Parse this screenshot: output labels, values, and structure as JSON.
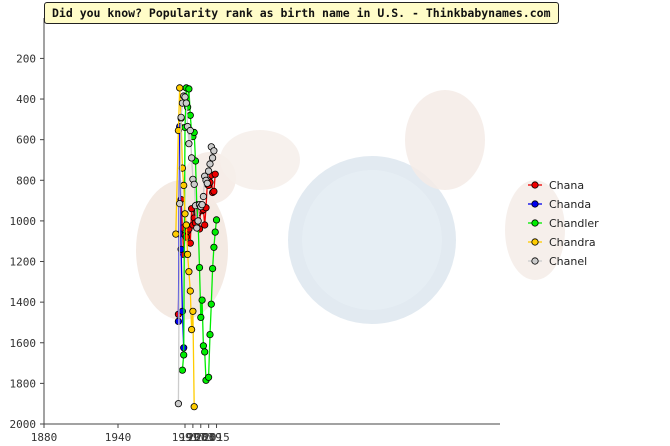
{
  "title": "Did you know? Popularity rank as birth name in U.S. - Thinkbabynames.com",
  "chart_data": {
    "type": "line",
    "x_ticks": [
      1880,
      1940,
      1991,
      1997,
      2003,
      2009,
      2015
    ],
    "y_ticks": [
      200,
      400,
      600,
      800,
      1000,
      1200,
      1400,
      1600,
      1800,
      2000
    ],
    "ylim": [
      2000,
      1
    ],
    "y_inverted": true,
    "grid": false,
    "legend_placement": "right",
    "series": [
      {
        "name": "Chana",
        "color": "#ee0000",
        "points": [
          [
            1986,
            1460
          ],
          [
            1987,
            1065
          ],
          [
            1988,
            895
          ],
          [
            1989,
            1035
          ],
          [
            1990,
            1165
          ],
          [
            1991,
            1070
          ],
          [
            1992,
            1080
          ],
          [
            1993,
            1050
          ],
          [
            1994,
            1040
          ],
          [
            1995,
            1110
          ],
          [
            1996,
            940
          ],
          [
            1997,
            1020
          ],
          [
            1998,
            985
          ],
          [
            1999,
            1010
          ],
          [
            2000,
            960
          ],
          [
            2001,
            960
          ],
          [
            2002,
            1040
          ],
          [
            2003,
            920
          ],
          [
            2004,
            950
          ],
          [
            2005,
            945
          ],
          [
            2006,
            1020
          ],
          [
            2007,
            935
          ],
          [
            2008,
            820
          ],
          [
            2009,
            825
          ],
          [
            2010,
            810
          ],
          [
            2011,
            775
          ],
          [
            2012,
            860
          ],
          [
            2013,
            855
          ],
          [
            2014,
            770
          ]
        ]
      },
      {
        "name": "Chanda",
        "color": "#0000ee",
        "points": [
          [
            1986,
            1495
          ],
          [
            1987,
            535
          ],
          [
            1988,
            1140
          ],
          [
            1989,
            1445
          ],
          [
            1990,
            1625
          ]
        ]
      },
      {
        "name": "Chandler",
        "color": "#00ee00",
        "points": [
          [
            1989,
            1735
          ],
          [
            1990,
            1660
          ],
          [
            1991,
            540
          ],
          [
            1992,
            345
          ],
          [
            1993,
            440
          ],
          [
            1994,
            350
          ],
          [
            1995,
            480
          ],
          [
            1996,
            565
          ],
          [
            1997,
            585
          ],
          [
            1998,
            565
          ],
          [
            1999,
            705
          ],
          [
            2000,
            920
          ],
          [
            2001,
            1000
          ],
          [
            2002,
            1230
          ],
          [
            2003,
            1475
          ],
          [
            2004,
            1390
          ],
          [
            2005,
            1615
          ],
          [
            2006,
            1645
          ],
          [
            2007,
            1785
          ],
          [
            2009,
            1770
          ],
          [
            2010,
            1560
          ],
          [
            2011,
            1410
          ],
          [
            2012,
            1235
          ],
          [
            2013,
            1130
          ],
          [
            2014,
            1055
          ],
          [
            2015,
            995
          ]
        ]
      },
      {
        "name": "Chandra",
        "color": "#ffcc00",
        "points": [
          [
            1984,
            1065
          ],
          [
            1986,
            555
          ],
          [
            1987,
            345
          ],
          [
            1988,
            495
          ],
          [
            1989,
            740
          ],
          [
            1990,
            825
          ],
          [
            1991,
            965
          ],
          [
            1992,
            1020
          ],
          [
            1993,
            1165
          ],
          [
            1994,
            1250
          ],
          [
            1995,
            1345
          ],
          [
            1996,
            1535
          ],
          [
            1997,
            1445
          ],
          [
            1998,
            1915
          ]
        ]
      },
      {
        "name": "Chanel",
        "color": "#cccccc",
        "points": [
          [
            1986,
            1900
          ],
          [
            1987,
            915
          ],
          [
            1988,
            490
          ],
          [
            1989,
            420
          ],
          [
            1990,
            385
          ],
          [
            1991,
            390
          ],
          [
            1992,
            420
          ],
          [
            1993,
            535
          ],
          [
            1994,
            620
          ],
          [
            1995,
            555
          ],
          [
            1996,
            690
          ],
          [
            1997,
            795
          ],
          [
            1998,
            820
          ],
          [
            1999,
            925
          ],
          [
            2000,
            1035
          ],
          [
            2001,
            1000
          ],
          [
            2002,
            920
          ],
          [
            2003,
            930
          ],
          [
            2004,
            920
          ],
          [
            2005,
            880
          ],
          [
            2006,
            780
          ],
          [
            2007,
            800
          ],
          [
            2008,
            815
          ],
          [
            2009,
            755
          ],
          [
            2010,
            720
          ],
          [
            2011,
            635
          ],
          [
            2012,
            690
          ],
          [
            2013,
            655
          ]
        ]
      }
    ]
  }
}
